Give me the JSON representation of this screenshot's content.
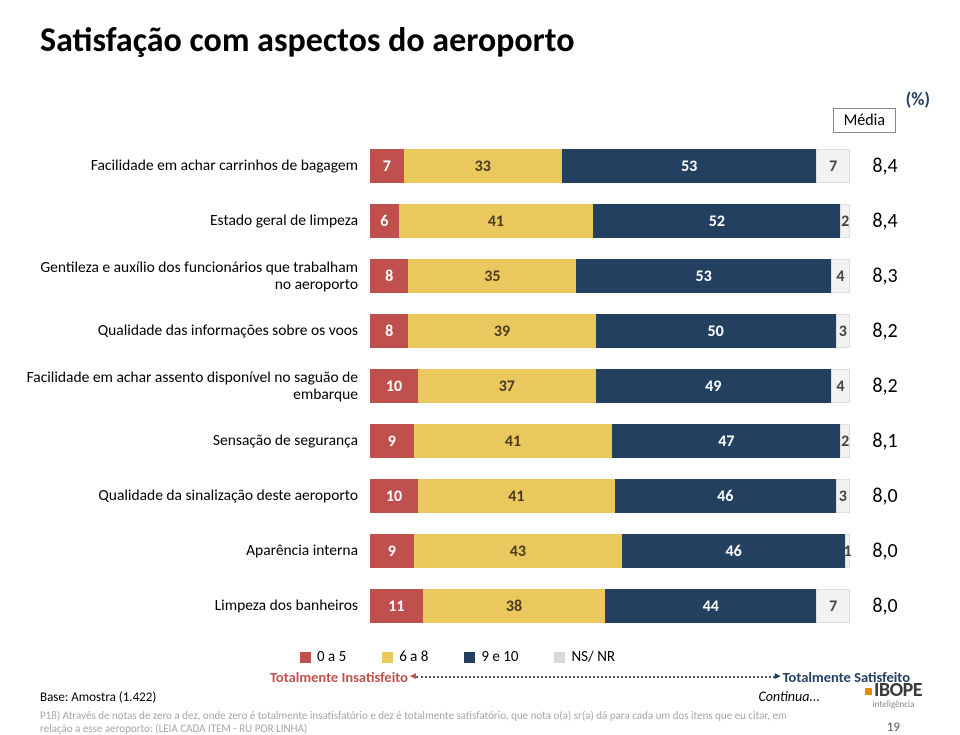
{
  "title": "Satisfação com aspectos do aeroporto",
  "percent_label": "(%)",
  "media_header": "Média",
  "rows": [
    {
      "label": "Facilidade em achar carrinhos de bagagem",
      "values": [
        7,
        33,
        53,
        7
      ],
      "media": "8,4"
    },
    {
      "label": "Estado geral de limpeza",
      "values": [
        6,
        41,
        52,
        2
      ],
      "media": "8,4"
    },
    {
      "label": "Gentileza e auxílio dos funcionários que trabalham no aeroporto",
      "values": [
        8,
        35,
        53,
        4
      ],
      "media": "8,3"
    },
    {
      "label": "Qualidade das informações sobre os voos",
      "values": [
        8,
        39,
        50,
        3
      ],
      "media": "8,2"
    },
    {
      "label": "Facilidade em achar assento disponível no saguão de embarque",
      "values": [
        10,
        37,
        49,
        4
      ],
      "media": "8,2"
    },
    {
      "label": "Sensação de segurança",
      "values": [
        9,
        41,
        47,
        2
      ],
      "media": "8,1"
    },
    {
      "label": "Qualidade da sinalização deste aeroporto",
      "values": [
        10,
        41,
        46,
        3
      ],
      "media": "8,0"
    },
    {
      "label": "Aparência interna",
      "values": [
        9,
        43,
        46,
        1
      ],
      "media": "8,0"
    },
    {
      "label": "Limpeza dos banheiros",
      "values": [
        11,
        38,
        44,
        7
      ],
      "media": "8,0"
    }
  ],
  "legend": [
    "0 a 5",
    "6 a 8",
    "9 e 10",
    "NS/ NR"
  ],
  "scale_left": "Totalmente Insatisfeito",
  "scale_right": "Totalmente Satisfeito",
  "base": "Base: Amostra (1.422)",
  "continua": "Continua...",
  "logo_main": "IBOPE",
  "logo_sub": "inteligência",
  "footnote": "P18) Através de notas de zero a dez, onde zero é totalmente insatisfatório e dez é totalmente satisfatório, que nota o(a) sr(a) dá para cada um dos itens que eu citar, em relação a esse aeroporto: (LEIA CADA ITEM - RU POR LINHA)",
  "pagenum": "19",
  "colors": {
    "seg0": "#c0504d",
    "seg1": "#eac85e",
    "seg2": "#244061",
    "seg3": "#f2f2f2"
  }
}
